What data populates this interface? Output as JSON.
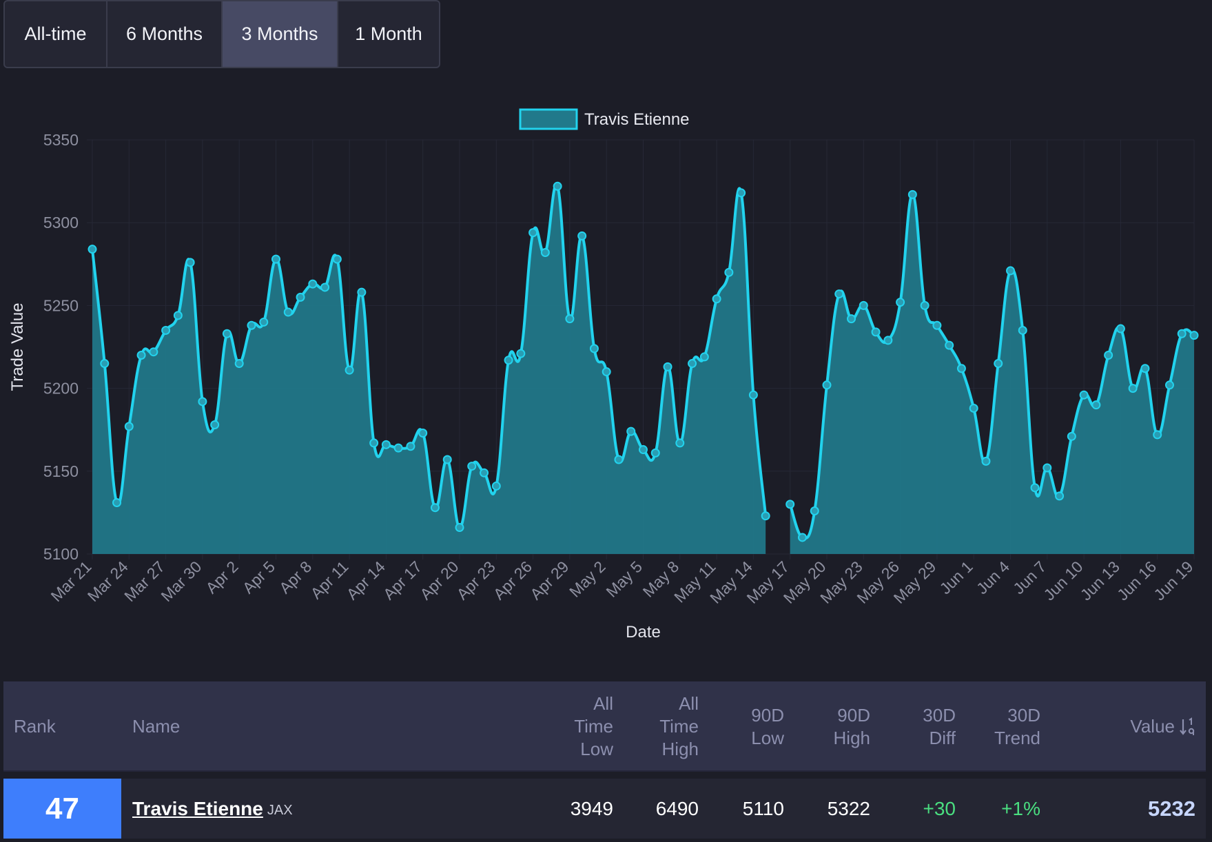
{
  "range_tabs": [
    "All-time",
    "6 Months",
    "3 Months",
    "1 Month"
  ],
  "active_tab": "3 Months",
  "chart_data": {
    "type": "area",
    "title": "",
    "legend": {
      "label": "Travis Etienne",
      "placement": "top-center"
    },
    "xlabel": "Date",
    "ylabel": "Trade Value",
    "ylim": [
      5100,
      5350
    ],
    "yticks": [
      5100,
      5150,
      5200,
      5250,
      5300,
      5350
    ],
    "xticks": [
      "Mar 21",
      "Mar 24",
      "Mar 27",
      "Mar 30",
      "Apr 2",
      "Apr 5",
      "Apr 8",
      "Apr 11",
      "Apr 14",
      "Apr 17",
      "Apr 20",
      "Apr 23",
      "Apr 26",
      "Apr 29",
      "May 2",
      "May 5",
      "May 8",
      "May 11",
      "May 14",
      "May 17",
      "May 20",
      "May 23",
      "May 26",
      "May 29",
      "Jun 1",
      "Jun 4",
      "Jun 7",
      "Jun 10",
      "Jun 13",
      "Jun 16",
      "Jun 19"
    ],
    "x_start": "Mar 21",
    "x_end": "Jun 19",
    "series": [
      {
        "name": "Travis Etienne",
        "color": "#22d3ee",
        "values": [
          5284,
          5215,
          5131,
          5177,
          5220,
          5222,
          5235,
          5244,
          5276,
          5192,
          5178,
          5233,
          5215,
          5238,
          5240,
          5278,
          5246,
          5255,
          5263,
          5261,
          5278,
          5211,
          5258,
          5167,
          5166,
          5164,
          5165,
          5173,
          5128,
          5157,
          5116,
          5153,
          5149,
          5141,
          5217,
          5221,
          5294,
          5282,
          5322,
          5242,
          5292,
          5224,
          5210,
          5157,
          5174,
          5163,
          5161,
          5213,
          5167,
          5215,
          5219,
          5254,
          5270,
          5318,
          5196,
          5123,
          null,
          5130,
          5110,
          5126,
          5202,
          5257,
          5242,
          5250,
          5234,
          5229,
          5252,
          5317,
          5250,
          5238,
          5226,
          5212,
          5188,
          5156,
          5215,
          5271,
          5235,
          5140,
          5152,
          5135,
          5171,
          5196,
          5190,
          5220,
          5236,
          5200,
          5212,
          5172,
          5202,
          5233,
          5232
        ]
      }
    ]
  },
  "table": {
    "headers": {
      "rank": "Rank",
      "name": "Name",
      "atl": [
        "All",
        "Time",
        "Low"
      ],
      "ath": [
        "All",
        "Time",
        "High"
      ],
      "low90": [
        "90D",
        "Low"
      ],
      "high90": [
        "90D",
        "High"
      ],
      "diff30": [
        "30D",
        "Diff"
      ],
      "trend30": [
        "30D",
        "Trend"
      ],
      "value": "Value",
      "sort_icon": "sort-descending-icon"
    },
    "row": {
      "rank": "47",
      "name": "Travis Etienne",
      "team": "JAX",
      "atl": "3949",
      "ath": "6490",
      "low90": "5110",
      "high90": "5322",
      "diff30": "+30",
      "trend30": "+1%",
      "value": "5232"
    }
  },
  "colors": {
    "background": "#1c1d27",
    "accent": "#22d3ee",
    "area_fill": "#21798b",
    "rank_badge": "#3e7efc",
    "positive": "#4ade80"
  }
}
